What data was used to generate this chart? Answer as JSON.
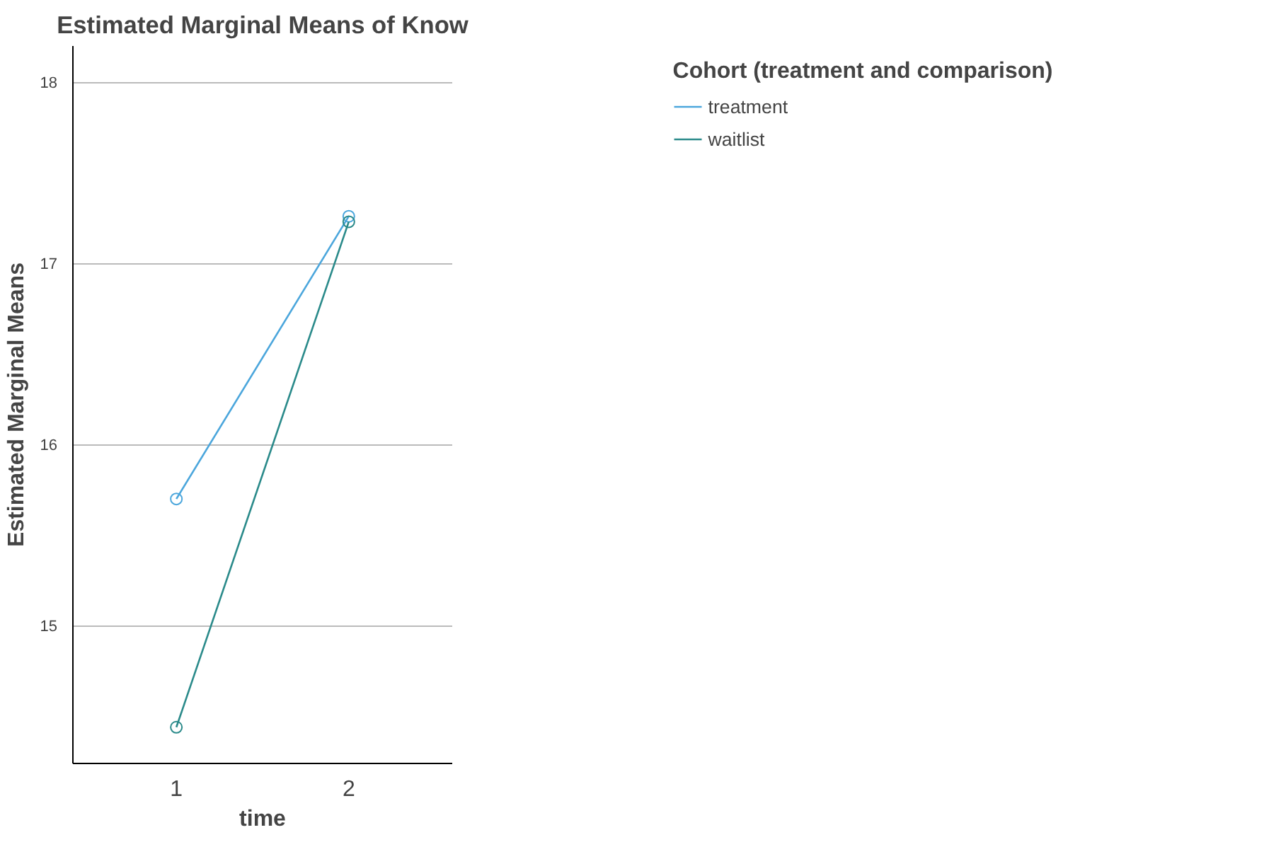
{
  "chart_data": {
    "type": "line",
    "title": "Estimated Marginal Means of Know",
    "xlabel": "time",
    "ylabel": "Estimated Marginal Means",
    "legend_title": "Cohort (treatment and comparison)",
    "categories": [
      "1",
      "2"
    ],
    "series": [
      {
        "name": "treatment",
        "color": "#4ba6dc",
        "values": [
          15.7,
          17.26
        ]
      },
      {
        "name": "waitlist",
        "color": "#2a8a8a",
        "values": [
          14.44,
          17.23
        ]
      }
    ],
    "ylim": [
      14.24,
      18.2
    ],
    "yticks": [
      15,
      16,
      17,
      18
    ],
    "grid": "y",
    "legend": "top right",
    "marker": "circle",
    "line_style": "solid"
  }
}
